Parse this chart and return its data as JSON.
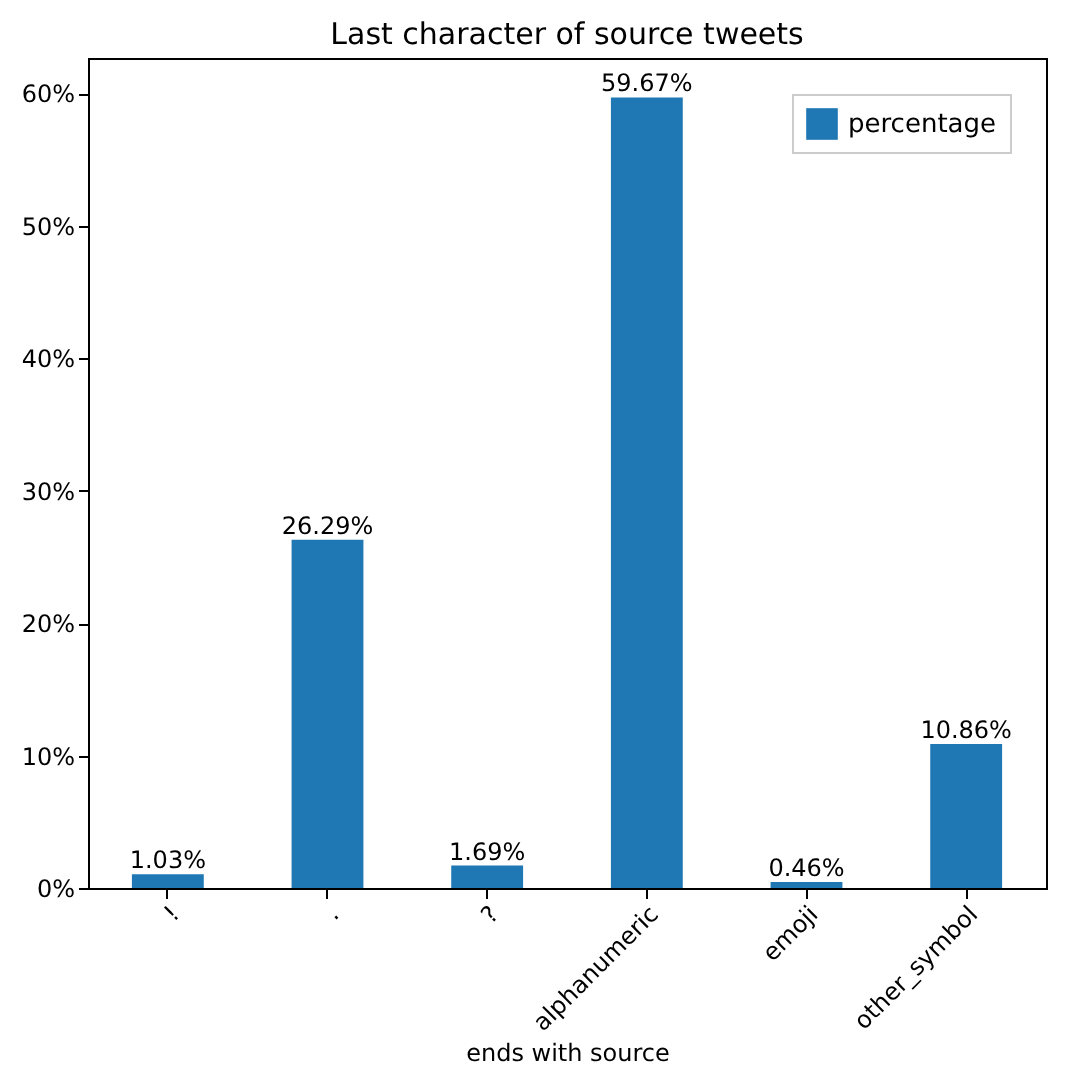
{
  "chart_data": {
    "type": "bar",
    "title": "Last character of source tweets",
    "xlabel": "ends with source",
    "categories": [
      "!",
      ".",
      "?",
      "alphanumeric",
      "emoji",
      "other_symbol"
    ],
    "series": [
      {
        "name": "percentage",
        "color": "#1f77b4",
        "values": [
          1.03,
          26.29,
          1.69,
          59.67,
          0.46,
          10.86
        ],
        "value_labels": [
          "1.03%",
          "26.29%",
          "1.69%",
          "59.67%",
          "0.46%",
          "10.86%"
        ]
      }
    ],
    "ylim": [
      0,
      62.65
    ],
    "yticks": [
      {
        "value": 0,
        "label": "0%"
      },
      {
        "value": 10,
        "label": "10%"
      },
      {
        "value": 20,
        "label": "20%"
      },
      {
        "value": 30,
        "label": "30%"
      },
      {
        "value": 40,
        "label": "40%"
      },
      {
        "value": 50,
        "label": "50%"
      },
      {
        "value": 60,
        "label": "60%"
      }
    ],
    "grid": false,
    "legend": "top right"
  }
}
